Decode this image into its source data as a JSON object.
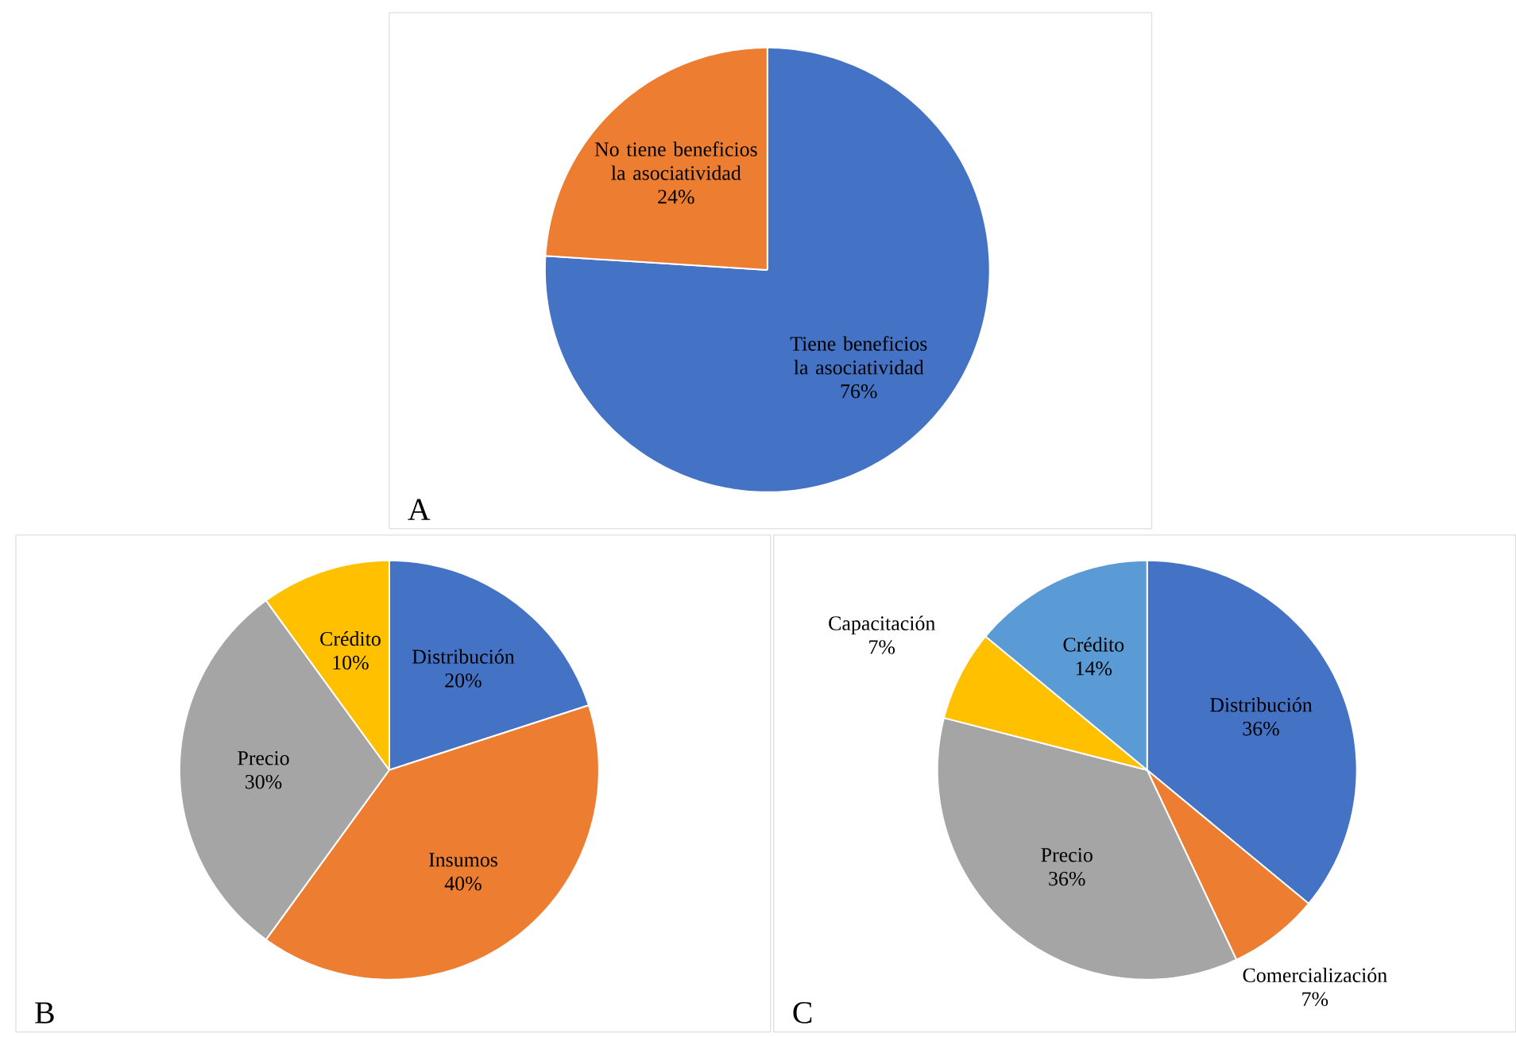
{
  "chart_data": [
    {
      "type": "pie",
      "categories": [
        "Tiene beneficios la asociatividad",
        "No tiene beneficios la asociatividad"
      ],
      "values": [
        76,
        24
      ],
      "value_labels": [
        "76%",
        "24%"
      ],
      "colors": [
        "#4472c4",
        "#ed7d31"
      ],
      "annotations": [
        "A"
      ]
    },
    {
      "type": "pie",
      "categories": [
        "Distribución",
        "Insumos",
        "Precio",
        "Crédito"
      ],
      "values": [
        20,
        40,
        30,
        10
      ],
      "value_labels": [
        "20%",
        "40%",
        "30%",
        "10%"
      ],
      "colors": [
        "#4472c4",
        "#ed7d31",
        "#a5a5a5",
        "#ffc000"
      ],
      "annotations": [
        "B"
      ]
    },
    {
      "type": "pie",
      "categories": [
        "Distribución",
        "Comercialización",
        "Precio",
        "Capacitación",
        "Crédito"
      ],
      "values": [
        36,
        7,
        36,
        7,
        14
      ],
      "value_labels": [
        "36%",
        "7%",
        "36%",
        "7%",
        "14%"
      ],
      "colors": [
        "#4472c4",
        "#ed7d31",
        "#a5a5a5",
        "#ffc000",
        "#5b9bd5"
      ],
      "annotations": [
        "C"
      ]
    }
  ]
}
